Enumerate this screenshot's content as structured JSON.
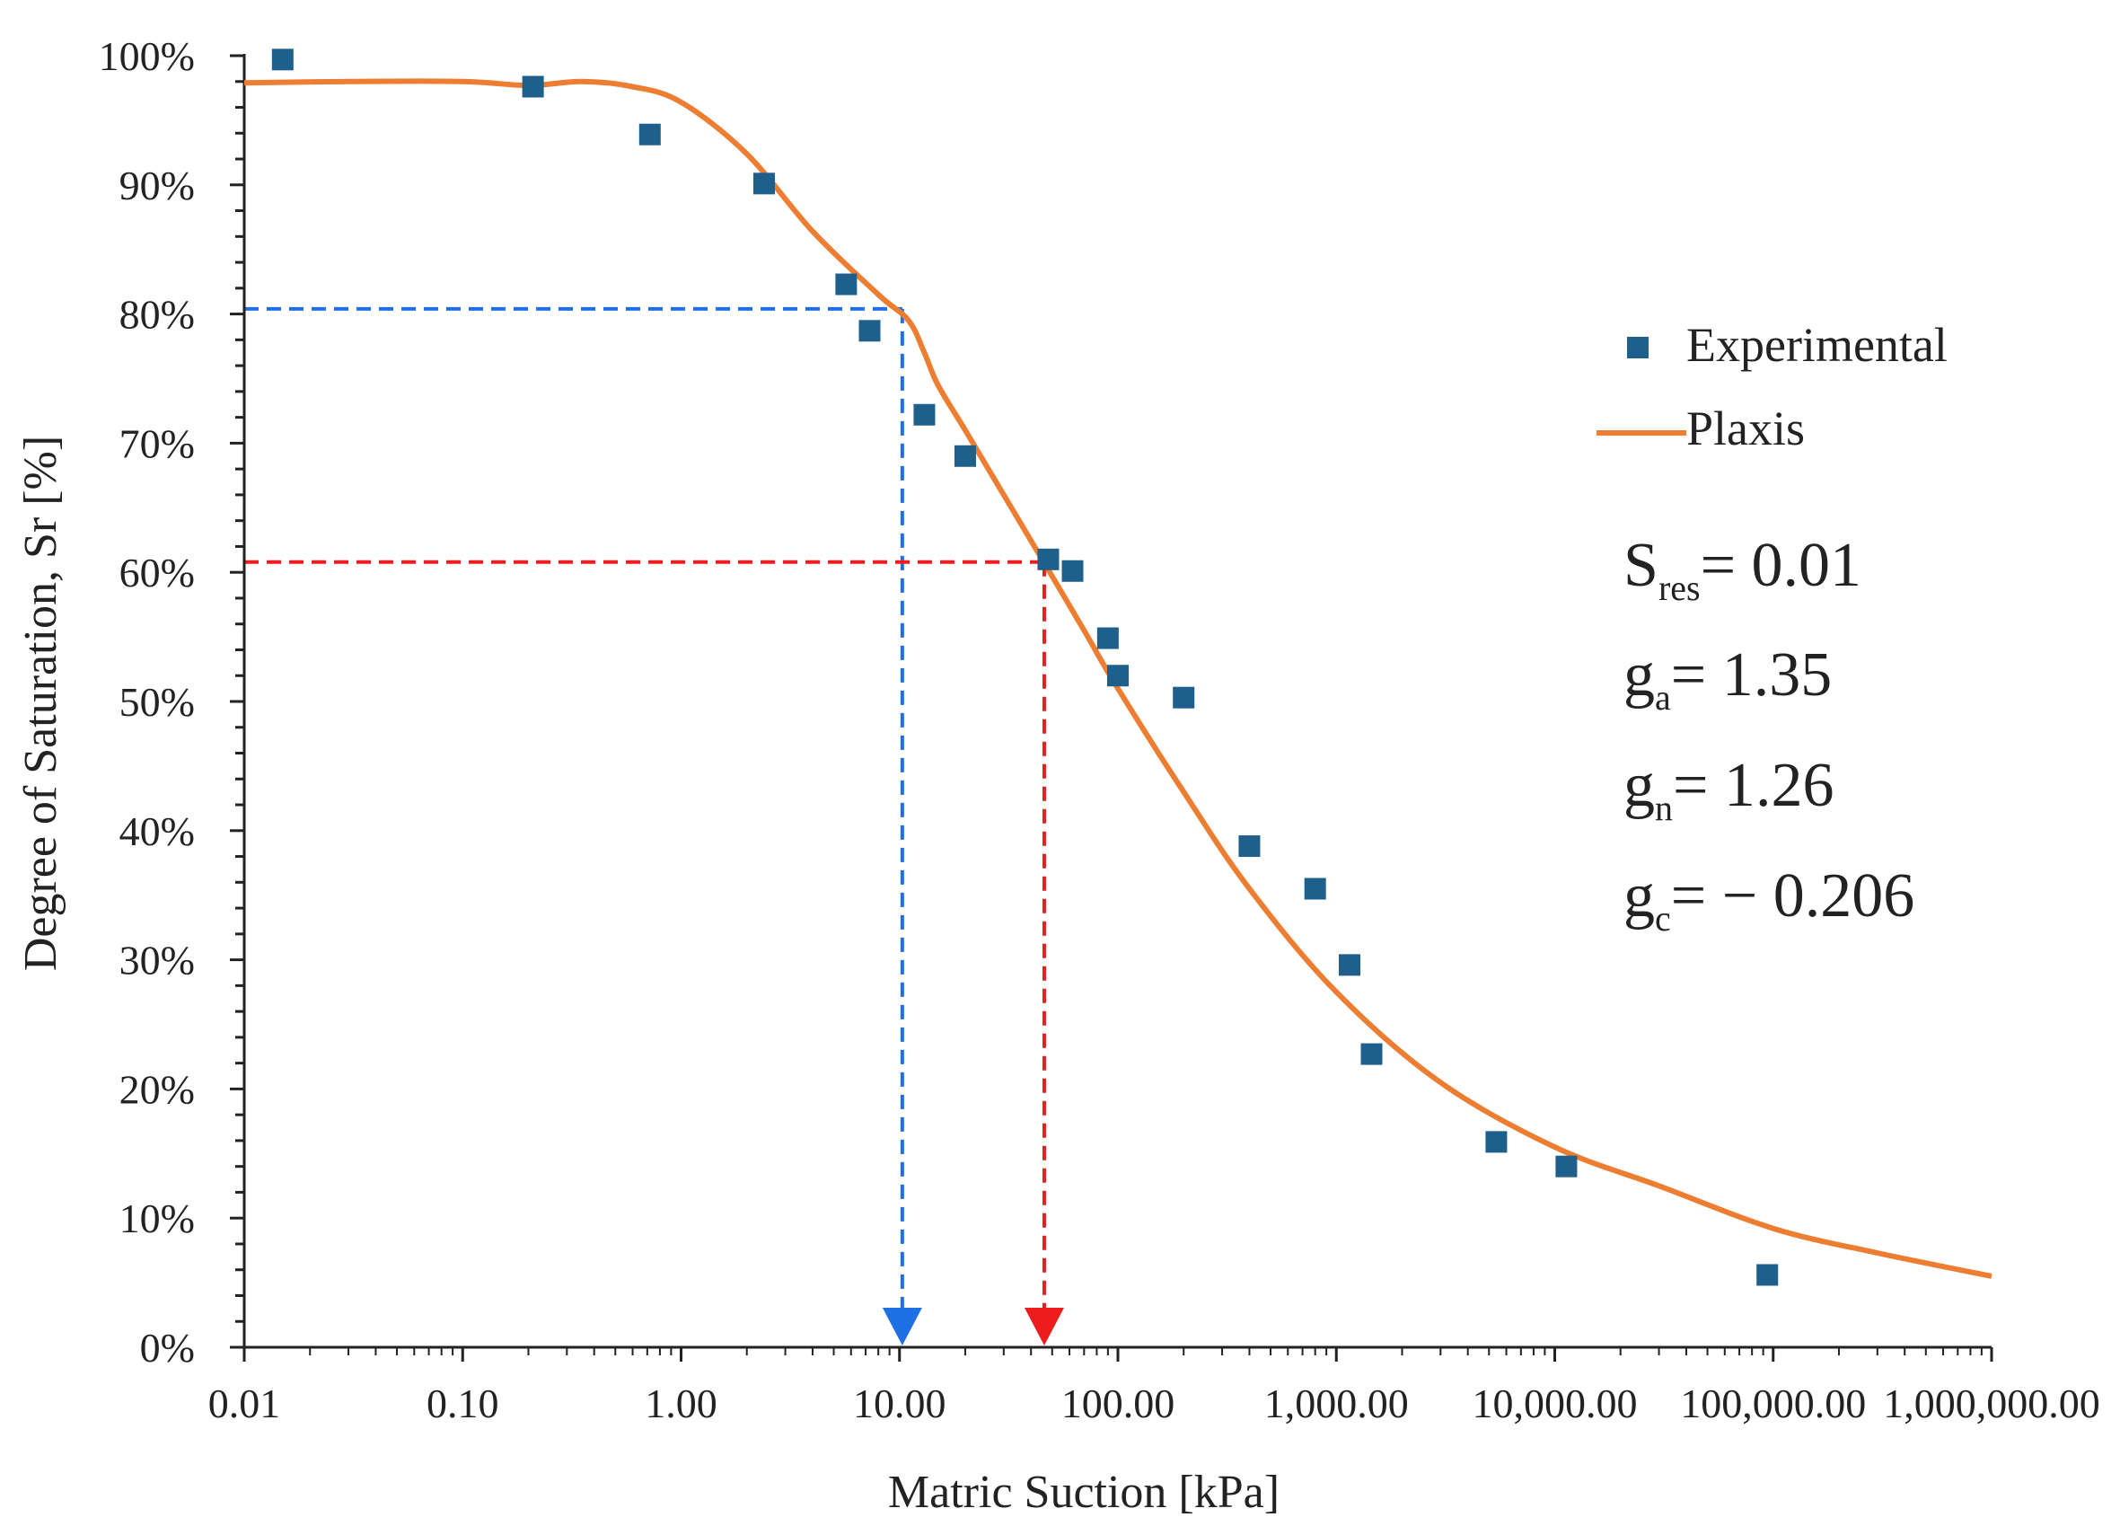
{
  "chart_data": {
    "type": "scatter",
    "title": "",
    "xlabel": "Matric Suction [kPa]",
    "ylabel": "Degree of Saturation, Sr [%]",
    "xscale": "log",
    "xlim": [
      0.01,
      1000000
    ],
    "ylim": [
      0,
      100
    ],
    "x_tick_values": [
      0.01,
      0.1,
      1,
      10,
      100,
      1000,
      10000,
      100000,
      1000000
    ],
    "x_tick_labels": [
      "0.01",
      "0.10",
      "1.00",
      "10.00",
      "100.00",
      "1,000.00",
      "10,000.00",
      "100,000.00",
      "1,000,000.00"
    ],
    "y_tick_values": [
      0,
      10,
      20,
      30,
      40,
      50,
      60,
      70,
      80,
      90,
      100
    ],
    "y_tick_labels": [
      "0%",
      "10%",
      "20%",
      "30%",
      "40%",
      "50%",
      "60%",
      "70%",
      "80%",
      "90%",
      "100%"
    ],
    "legend_position": "right",
    "series": [
      {
        "name": "Experimental",
        "kind": "scatter",
        "color": "#1f5f8b",
        "x": [
          0.015,
          0.21,
          0.72,
          2.4,
          5.7,
          7.3,
          13,
          20,
          48,
          62,
          90,
          100,
          200,
          400,
          800,
          1150,
          1450,
          5400,
          11300,
          94000
        ],
        "y": [
          99.7,
          97.6,
          93.9,
          90.1,
          82.3,
          78.7,
          72.2,
          69.0,
          61.0,
          60.1,
          54.9,
          52.0,
          50.3,
          38.8,
          35.5,
          29.6,
          22.7,
          15.9,
          14.0,
          5.6
        ]
      },
      {
        "name": "Plaxis",
        "kind": "line",
        "color": "#ed7d31",
        "x": [
          0.01,
          0.03,
          0.1,
          0.2,
          0.35,
          0.6,
          1,
          2,
          4,
          8,
          11,
          13,
          15,
          20,
          30,
          45,
          70,
          100,
          200,
          400,
          1000,
          3000,
          10000,
          30000,
          100000,
          300000,
          1000000
        ],
        "y": [
          97.9,
          98.0,
          98.0,
          97.7,
          98.0,
          97.6,
          96.4,
          92.4,
          86.4,
          81.5,
          79.5,
          77.0,
          74.5,
          71.0,
          66.0,
          61.0,
          55.5,
          51.0,
          43.0,
          35.5,
          27.5,
          20.5,
          15.5,
          12.5,
          9.2,
          7.3,
          5.5
        ]
      }
    ],
    "reference_lines": [
      {
        "color": "#1f6fe5",
        "y": 80.4,
        "x": 10.3,
        "style": "dashed",
        "arrow": "down"
      },
      {
        "color": "#ee1c1c",
        "y": 60.8,
        "x": 46,
        "style": "dashed",
        "arrow": "down"
      }
    ],
    "annotations": [
      {
        "main": "S",
        "sub": "res",
        "value": "= 0.01"
      },
      {
        "main": "g",
        "sub": "a",
        "value": "= 1.35"
      },
      {
        "main": "g",
        "sub": "n",
        "value": "= 1.26"
      },
      {
        "main": "g",
        "sub": "c",
        "value": "= − 0.206"
      }
    ]
  }
}
